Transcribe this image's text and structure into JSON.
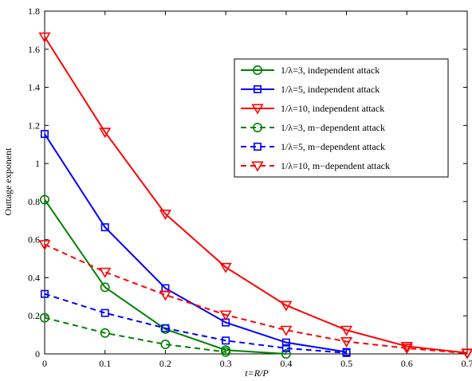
{
  "chart_data": {
    "type": "line",
    "title": "",
    "xlabel": "t=R/P",
    "ylabel": "Outtage exponent",
    "xlim": [
      0,
      0.7
    ],
    "ylim": [
      0,
      1.8
    ],
    "xticks": [
      0,
      0.1,
      0.2,
      0.3,
      0.4,
      0.5,
      0.6,
      0.7
    ],
    "yticks": [
      0,
      0.2,
      0.4,
      0.6,
      0.8,
      1,
      1.2,
      1.4,
      1.6,
      1.8
    ],
    "xtick_labels": [
      "0",
      "0.1",
      "0.2",
      "0.3",
      "0.4",
      "0.5",
      "0.6",
      "0.7"
    ],
    "ytick_labels": [
      "0",
      "0.2",
      "0.4",
      "0.6",
      "0.8",
      "1",
      "1.2",
      "1.4",
      "1.6",
      "1.8"
    ],
    "grid": false,
    "legend_position": "top-right",
    "series": [
      {
        "name": "1/λ=3, independent attack",
        "color": "#008000",
        "dash": "solid",
        "marker": "circle",
        "x": [
          0,
          0.1,
          0.2,
          0.3,
          0.4
        ],
        "y": [
          0.81,
          0.35,
          0.13,
          0.02,
          0.0
        ]
      },
      {
        "name": "1/λ=5, independent attack",
        "color": "#0000ff",
        "dash": "solid",
        "marker": "square",
        "x": [
          0,
          0.1,
          0.2,
          0.3,
          0.4,
          0.5
        ],
        "y": [
          1.155,
          0.665,
          0.345,
          0.165,
          0.06,
          0.01
        ]
      },
      {
        "name": "1/λ=10, independent attack",
        "color": "#ff0000",
        "dash": "solid",
        "marker": "triangle-down",
        "x": [
          0,
          0.1,
          0.2,
          0.3,
          0.4,
          0.5,
          0.6,
          0.7
        ],
        "y": [
          1.665,
          1.165,
          0.735,
          0.455,
          0.255,
          0.125,
          0.04,
          0.005
        ]
      },
      {
        "name": "1/λ=3, m−dependent attack",
        "color": "#008000",
        "dash": "dashed",
        "marker": "circle",
        "x": [
          0,
          0.1,
          0.2,
          0.3
        ],
        "y": [
          0.19,
          0.11,
          0.05,
          0.01
        ]
      },
      {
        "name": "1/λ=5, m−dependent attack",
        "color": "#0000ff",
        "dash": "dashed",
        "marker": "square",
        "x": [
          0,
          0.1,
          0.2,
          0.3,
          0.4,
          0.5
        ],
        "y": [
          0.315,
          0.215,
          0.135,
          0.07,
          0.03,
          0.005
        ]
      },
      {
        "name": "1/λ=10, m−dependent attack",
        "color": "#ff0000",
        "dash": "dashed",
        "marker": "triangle-down",
        "x": [
          0,
          0.1,
          0.2,
          0.3,
          0.4,
          0.5,
          0.6,
          0.7
        ],
        "y": [
          0.575,
          0.43,
          0.31,
          0.205,
          0.125,
          0.065,
          0.03,
          0.003
        ]
      }
    ]
  }
}
